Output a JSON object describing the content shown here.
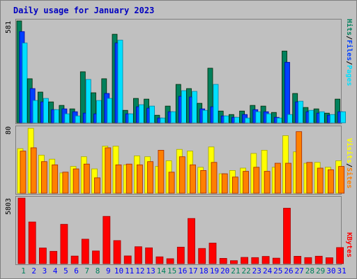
{
  "title": "Daily usage for January 2023",
  "colors": {
    "hits": "#00805c",
    "files": "#0040ff",
    "pages": "#00e0ff",
    "visits": "#ffff00",
    "sites": "#ff8000",
    "kbytes": "#ff0000",
    "weekday": "#0000ff",
    "weekend": "#00805c",
    "title": "#0000c0"
  },
  "chart_data": [
    {
      "type": "bar",
      "name": "hits-files-pages",
      "categories": [
        "1",
        "2",
        "3",
        "4",
        "5",
        "6",
        "7",
        "8",
        "9",
        "10",
        "11",
        "12",
        "13",
        "14",
        "15",
        "16",
        "17",
        "18",
        "19",
        "20",
        "21",
        "22",
        "23",
        "24",
        "25",
        "26",
        "27",
        "28",
        "29",
        "30",
        "31"
      ],
      "weekend": [
        1,
        7,
        8,
        14,
        15,
        21,
        22,
        28,
        29
      ],
      "ymax_label": "581",
      "ylim": [
        0,
        581
      ],
      "legend": [
        "Pages",
        "/",
        "Files",
        "/",
        "Hits"
      ],
      "series": [
        {
          "name": "Hits",
          "values": [
            581,
            251,
            175,
            119,
            99,
            79,
            291,
            171,
            251,
            505,
            71,
            139,
            135,
            43,
            95,
            219,
            195,
            111,
            311,
            67,
            47,
            67,
            99,
            95,
            59,
            409,
            167,
            87,
            79,
            55,
            135
          ]
        },
        {
          "name": "Files",
          "values": [
            520,
            195,
            119,
            75,
            79,
            63,
            55,
            51,
            167,
            455,
            51,
            91,
            83,
            27,
            63,
            151,
            147,
            79,
            91,
            39,
            31,
            47,
            75,
            63,
            31,
            345,
            119,
            63,
            55,
            43,
            63
          ]
        },
        {
          "name": "Pages",
          "values": [
            455,
            127,
            139,
            75,
            51,
            39,
            247,
            127,
            139,
            471,
            51,
            103,
            95,
            27,
            63,
            183,
            179,
            71,
            219,
            39,
            31,
            27,
            63,
            51,
            27,
            47,
            123,
            71,
            63,
            47,
            63
          ]
        }
      ]
    },
    {
      "type": "bar",
      "name": "visits-sites",
      "categories": [
        "1",
        "2",
        "3",
        "4",
        "5",
        "6",
        "7",
        "8",
        "9",
        "10",
        "11",
        "12",
        "13",
        "14",
        "15",
        "16",
        "17",
        "18",
        "19",
        "20",
        "21",
        "22",
        "23",
        "24",
        "25",
        "26",
        "27",
        "28",
        "29",
        "30",
        "31"
      ],
      "ymax_label": "80",
      "ylim": [
        0,
        80
      ],
      "legend": [
        "Sites",
        "/",
        "Visits"
      ],
      "series": [
        {
          "name": "Visits",
          "values": [
            55,
            80,
            47,
            42,
            25,
            33,
            45,
            30,
            58,
            58,
            35,
            46,
            45,
            33,
            40,
            54,
            52,
            32,
            57,
            24,
            28,
            31,
            49,
            53,
            32,
            71,
            51,
            37,
            38,
            32,
            40
          ]
        },
        {
          "name": "Sites",
          "values": [
            52,
            56,
            39,
            35,
            26,
            30,
            36,
            19,
            56,
            35,
            36,
            35,
            39,
            53,
            26,
            45,
            35,
            28,
            38,
            24,
            20,
            27,
            32,
            27,
            37,
            37,
            76,
            38,
            31,
            29,
            33
          ]
        }
      ]
    },
    {
      "type": "bar",
      "name": "kbytes",
      "categories": [
        "1",
        "2",
        "3",
        "4",
        "5",
        "6",
        "7",
        "8",
        "9",
        "10",
        "11",
        "12",
        "13",
        "14",
        "15",
        "16",
        "17",
        "18",
        "19",
        "20",
        "21",
        "22",
        "23",
        "24",
        "25",
        "26",
        "27",
        "28",
        "29",
        "30",
        "31"
      ],
      "ymax_label": "5803",
      "ylim": [
        0,
        5803
      ],
      "legend": [
        "KBytes"
      ],
      "series": [
        {
          "name": "KBytes",
          "values": [
            5803,
            3694,
            1392,
            1090,
            3482,
            672,
            2166,
            1121,
            4185,
            2042,
            688,
            1499,
            1400,
            608,
            440,
            1464,
            3999,
            1346,
            1824,
            472,
            266,
            553,
            538,
            640,
            488,
            4906,
            654,
            538,
            662,
            522,
            1424
          ]
        }
      ]
    }
  ]
}
